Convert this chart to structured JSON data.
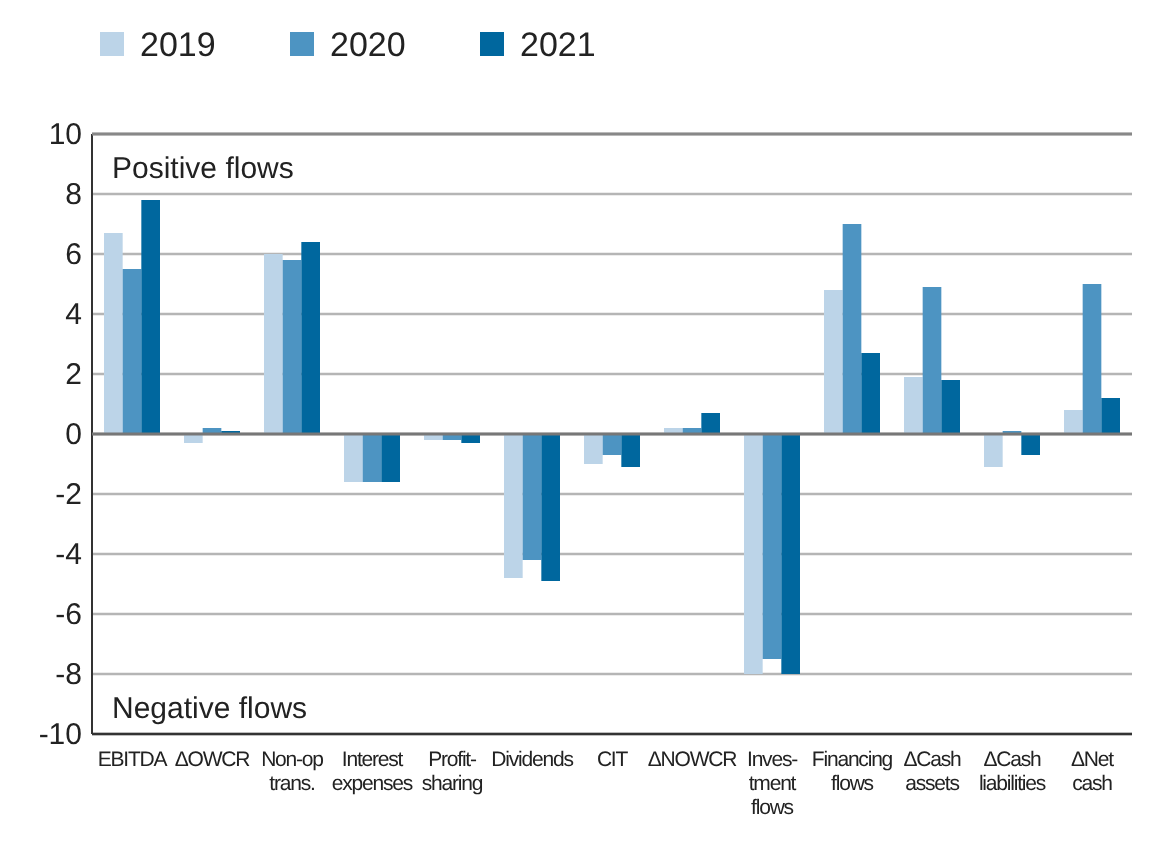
{
  "chart_data": {
    "type": "bar",
    "categories": [
      "EBITDA",
      "ΔOWCR",
      "Non-op\ntrans.",
      "Interest\nexpenses",
      "Profit-\nsharing",
      "Dividends",
      "CIT",
      "ΔNOWCR",
      "Inves-\ntment\nflows",
      "Financing\nflows",
      "ΔCash\nassets",
      "ΔCash\nliabilities",
      "ΔNet\ncash"
    ],
    "series": [
      {
        "name": "2019",
        "color": "#bcd4e8",
        "values": [
          6.7,
          -0.3,
          6.0,
          -1.6,
          -0.2,
          -4.8,
          -1.0,
          0.2,
          -8.0,
          4.8,
          1.9,
          -1.1,
          0.8
        ]
      },
      {
        "name": "2020",
        "color": "#4d94c2",
        "values": [
          5.5,
          0.2,
          5.8,
          -1.6,
          -0.2,
          -4.2,
          -0.7,
          0.2,
          -7.5,
          7.0,
          4.9,
          0.1,
          5.0
        ]
      },
      {
        "name": "2021",
        "color": "#00679e",
        "values": [
          7.8,
          0.1,
          6.4,
          -1.6,
          -0.3,
          -4.9,
          -1.1,
          0.7,
          -8.0,
          2.7,
          1.8,
          -0.7,
          1.2
        ]
      }
    ],
    "ylim": [
      -10,
      10
    ],
    "yticks": [
      -10,
      -8,
      -6,
      -4,
      -2,
      0,
      2,
      4,
      6,
      8,
      10
    ],
    "grid": "y",
    "legend": "top left",
    "annotations": [
      "Positive flows",
      "Negative flows"
    ]
  }
}
